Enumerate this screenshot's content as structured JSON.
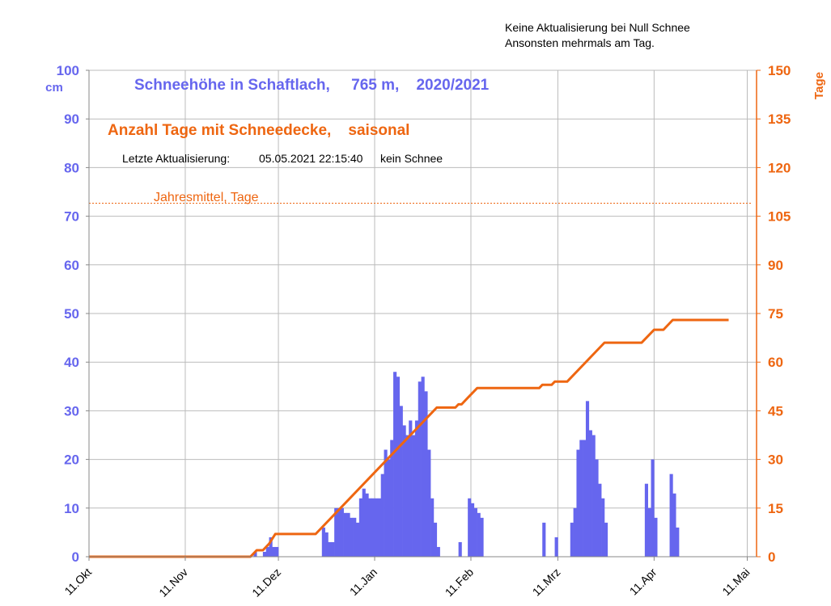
{
  "notes": {
    "line1": "Keine Aktualisierung bei Null Schnee",
    "line2": "Ansonsten mehrmals am Tag."
  },
  "chart_data": {
    "type": "bar",
    "title": "Schneehöhe in Schaftlach,     765 m,    2020/2021",
    "subtitle": "Anzahl Tage mit Schneedecke,    saisonal",
    "update_label": "Letzte Aktualisierung:",
    "update_datetime": "05.05.2021 22:15:40",
    "update_status": "kein Schnee",
    "ylabel_left": "cm",
    "ylabel_right": "Tage",
    "ylim_left": [
      0,
      100
    ],
    "ylim_right": [
      0,
      150
    ],
    "yticks_left": [
      0,
      10,
      20,
      30,
      40,
      50,
      60,
      70,
      80,
      90,
      100
    ],
    "yticks_right": [
      0,
      15,
      30,
      45,
      60,
      75,
      90,
      105,
      120,
      135,
      150
    ],
    "x_start": "2020-10-11",
    "x_end": "2021-05-14",
    "xticks": [
      {
        "date": "2020-10-11",
        "label": "11.Okt"
      },
      {
        "date": "2020-11-11",
        "label": "11.Nov"
      },
      {
        "date": "2020-12-11",
        "label": "11.Dez"
      },
      {
        "date": "2021-01-11",
        "label": "11.Jan"
      },
      {
        "date": "2021-02-11",
        "label": "11.Feb"
      },
      {
        "date": "2021-03-11",
        "label": "11.Mrz"
      },
      {
        "date": "2021-04-11",
        "label": "11.Apr"
      },
      {
        "date": "2021-05-11",
        "label": "11.Mai"
      }
    ],
    "grid": true,
    "colors": {
      "snow": "#6666ee",
      "days": "#ee6611",
      "grid": "#bbbbbb",
      "left_axis": "#6666ee",
      "right_axis": "#ee6611"
    },
    "mean_line": {
      "label": "Jahresmittel, Tage",
      "value": 109
    },
    "series": [
      {
        "name": "Schneehöhe",
        "axis": "left",
        "type": "bar",
        "points": [
          [
            "2020-12-03",
            1
          ],
          [
            "2020-12-06",
            1
          ],
          [
            "2020-12-07",
            2
          ],
          [
            "2020-12-08",
            4
          ],
          [
            "2020-12-09",
            2
          ],
          [
            "2020-12-10",
            2
          ],
          [
            "2020-12-25",
            6
          ],
          [
            "2020-12-26",
            5
          ],
          [
            "2020-12-27",
            3
          ],
          [
            "2020-12-28",
            3
          ],
          [
            "2020-12-29",
            10
          ],
          [
            "2020-12-30",
            10
          ],
          [
            "2020-12-31",
            10
          ],
          [
            "2021-01-01",
            9
          ],
          [
            "2021-01-02",
            9
          ],
          [
            "2021-01-03",
            8
          ],
          [
            "2021-01-04",
            8
          ],
          [
            "2021-01-05",
            7
          ],
          [
            "2021-01-06",
            12
          ],
          [
            "2021-01-07",
            14
          ],
          [
            "2021-01-08",
            13
          ],
          [
            "2021-01-09",
            12
          ],
          [
            "2021-01-10",
            12
          ],
          [
            "2021-01-11",
            12
          ],
          [
            "2021-01-12",
            12
          ],
          [
            "2021-01-13",
            17
          ],
          [
            "2021-01-14",
            22
          ],
          [
            "2021-01-15",
            20
          ],
          [
            "2021-01-16",
            24
          ],
          [
            "2021-01-17",
            38
          ],
          [
            "2021-01-18",
            37
          ],
          [
            "2021-01-19",
            31
          ],
          [
            "2021-01-20",
            27
          ],
          [
            "2021-01-21",
            25
          ],
          [
            "2021-01-22",
            28
          ],
          [
            "2021-01-23",
            25
          ],
          [
            "2021-01-24",
            28
          ],
          [
            "2021-01-25",
            36
          ],
          [
            "2021-01-26",
            37
          ],
          [
            "2021-01-27",
            34
          ],
          [
            "2021-01-28",
            22
          ],
          [
            "2021-01-29",
            12
          ],
          [
            "2021-01-30",
            7
          ],
          [
            "2021-01-31",
            2
          ],
          [
            "2021-02-07",
            3
          ],
          [
            "2021-02-10",
            12
          ],
          [
            "2021-02-11",
            11
          ],
          [
            "2021-02-12",
            10
          ],
          [
            "2021-02-13",
            9
          ],
          [
            "2021-02-14",
            8
          ],
          [
            "2021-03-06",
            7
          ],
          [
            "2021-03-10",
            4
          ],
          [
            "2021-03-15",
            7
          ],
          [
            "2021-03-16",
            10
          ],
          [
            "2021-03-17",
            22
          ],
          [
            "2021-03-18",
            24
          ],
          [
            "2021-03-19",
            24
          ],
          [
            "2021-03-20",
            32
          ],
          [
            "2021-03-21",
            26
          ],
          [
            "2021-03-22",
            25
          ],
          [
            "2021-03-23",
            20
          ],
          [
            "2021-03-24",
            15
          ],
          [
            "2021-03-25",
            12
          ],
          [
            "2021-03-26",
            7
          ],
          [
            "2021-04-08",
            15
          ],
          [
            "2021-04-09",
            10
          ],
          [
            "2021-04-10",
            20
          ],
          [
            "2021-04-11",
            8
          ],
          [
            "2021-04-16",
            17
          ],
          [
            "2021-04-17",
            13
          ],
          [
            "2021-04-18",
            6
          ]
        ]
      },
      {
        "name": "Tage mit Schneedecke",
        "axis": "right",
        "type": "line",
        "points": [
          [
            "2020-10-11",
            0
          ],
          [
            "2020-12-02",
            0
          ],
          [
            "2020-12-04",
            2
          ],
          [
            "2020-12-06",
            2
          ],
          [
            "2020-12-07",
            3
          ],
          [
            "2020-12-08",
            4
          ],
          [
            "2020-12-10",
            7
          ],
          [
            "2020-12-23",
            7
          ],
          [
            "2021-01-31",
            46
          ],
          [
            "2021-02-06",
            46
          ],
          [
            "2021-02-07",
            47
          ],
          [
            "2021-02-08",
            47
          ],
          [
            "2021-02-10",
            49
          ],
          [
            "2021-02-13",
            52
          ],
          [
            "2021-03-05",
            52
          ],
          [
            "2021-03-06",
            53
          ],
          [
            "2021-03-09",
            53
          ],
          [
            "2021-03-10",
            54
          ],
          [
            "2021-03-14",
            54
          ],
          [
            "2021-03-26",
            66
          ],
          [
            "2021-04-07",
            66
          ],
          [
            "2021-04-11",
            70
          ],
          [
            "2021-04-14",
            70
          ],
          [
            "2021-04-17",
            73
          ],
          [
            "2021-05-05",
            73
          ]
        ]
      }
    ]
  }
}
